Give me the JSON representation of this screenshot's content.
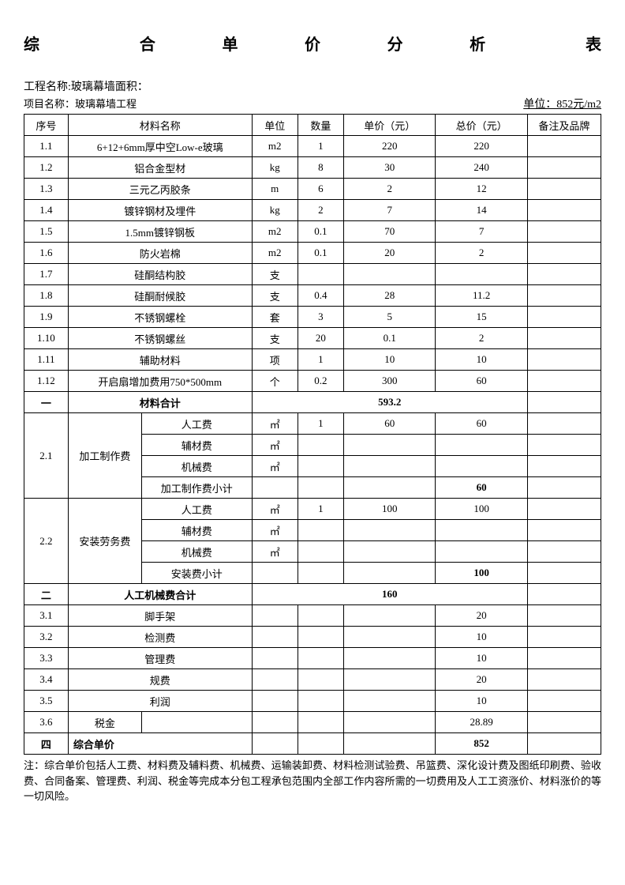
{
  "title_chars": [
    "综",
    "合",
    "单",
    "价",
    "分",
    "析",
    "表"
  ],
  "project_line": "工程名称:玻璃幕墙面积：",
  "item_line_label": "项目名称：玻璃幕墙工程",
  "unit_label": "单位：852元/m2",
  "headers": {
    "seq": "序号",
    "name": "材料名称",
    "unit": "单位",
    "qty": "数量",
    "price": "单价（元）",
    "total": "总价（元）",
    "remark": "备注及品牌"
  },
  "materials": [
    {
      "seq": "1.1",
      "name": "6+12+6mm厚中空Low-e玻璃",
      "unit": "m2",
      "qty": "1",
      "price": "220",
      "total": "220"
    },
    {
      "seq": "1.2",
      "name": "铝合金型材",
      "unit": "kg",
      "qty": "8",
      "price": "30",
      "total": "240"
    },
    {
      "seq": "1.3",
      "name": "三元乙丙胶条",
      "unit": "m",
      "qty": "6",
      "price": "2",
      "total": "12"
    },
    {
      "seq": "1.4",
      "name": "镀锌钢材及埋件",
      "unit": "kg",
      "qty": "2",
      "price": "7",
      "total": "14"
    },
    {
      "seq": "1.5",
      "name": "1.5mm镀锌钢板",
      "unit": "m2",
      "qty": "0.1",
      "price": "70",
      "total": "7"
    },
    {
      "seq": "1.6",
      "name": "防火岩棉",
      "unit": "m2",
      "qty": "0.1",
      "price": "20",
      "total": "2"
    },
    {
      "seq": "1.7",
      "name": "硅酮结构胶",
      "unit": "支",
      "qty": "",
      "price": "",
      "total": ""
    },
    {
      "seq": "1.8",
      "name": "硅酮耐候胶",
      "unit": "支",
      "qty": "0.4",
      "price": "28",
      "total": "11.2"
    },
    {
      "seq": "1.9",
      "name": "不锈钢螺栓",
      "unit": "套",
      "qty": "3",
      "price": "5",
      "total": "15"
    },
    {
      "seq": "1.10",
      "name": "不锈钢螺丝",
      "unit": "支",
      "qty": "20",
      "price": "0.1",
      "total": "2"
    },
    {
      "seq": "1.11",
      "name": "辅助材料",
      "unit": "项",
      "qty": "1",
      "price": "10",
      "total": "10"
    },
    {
      "seq": "1.12",
      "name": "开启扇增加费用750*500mm",
      "unit": "个",
      "qty": "0.2",
      "price": "300",
      "total": "60"
    }
  ],
  "section1": {
    "seq": "一",
    "label": "材料合计",
    "total": "593.2"
  },
  "sec21": {
    "seq": "2.1",
    "group": "加工制作费",
    "rows": [
      {
        "name": "人工费",
        "unit": "㎡",
        "qty": "1",
        "price": "60",
        "total": "60"
      },
      {
        "name": "辅材费",
        "unit": "㎡",
        "qty": "",
        "price": "",
        "total": ""
      },
      {
        "name": "机械费",
        "unit": "㎡",
        "qty": "",
        "price": "",
        "total": ""
      }
    ],
    "subtotal_label": "加工制作费小计",
    "subtotal": "60"
  },
  "sec22": {
    "seq": "2.2",
    "group": "安装劳务费",
    "rows": [
      {
        "name": "人工费",
        "unit": "㎡",
        "qty": "1",
        "price": "100",
        "total": "100"
      },
      {
        "name": "辅材费",
        "unit": "㎡",
        "qty": "",
        "price": "",
        "total": ""
      },
      {
        "name": "机械费",
        "unit": "㎡",
        "qty": "",
        "price": "",
        "total": ""
      }
    ],
    "subtotal_label": "安装费小计",
    "subtotal": "100"
  },
  "section2": {
    "seq": "二",
    "label": "人工机械费合计",
    "total": "160"
  },
  "others": [
    {
      "seq": "3.1",
      "name": "脚手架",
      "total": "20"
    },
    {
      "seq": "3.2",
      "name": "检测费",
      "total": "10"
    },
    {
      "seq": "3.3",
      "name": "管理费",
      "total": "10"
    },
    {
      "seq": "3.4",
      "name": "规费",
      "total": "20"
    },
    {
      "seq": "3.5",
      "name": "利润",
      "total": "10"
    }
  ],
  "tax": {
    "seq": "3.6",
    "name": "税金",
    "total": "28.89"
  },
  "section4": {
    "seq": "四",
    "label": "综合单价",
    "total": "852"
  },
  "note": "注：综合单价包括人工费、材料费及辅料费、机械费、运输装卸费、材料检测试验费、吊篮费、深化设计费及图纸印刷费、验收费、合同备案、管理费、利润、税金等完成本分包工程承包范围内全部工作内容所需的一切费用及人工工资涨价、材料涨价的等一切风险。"
}
